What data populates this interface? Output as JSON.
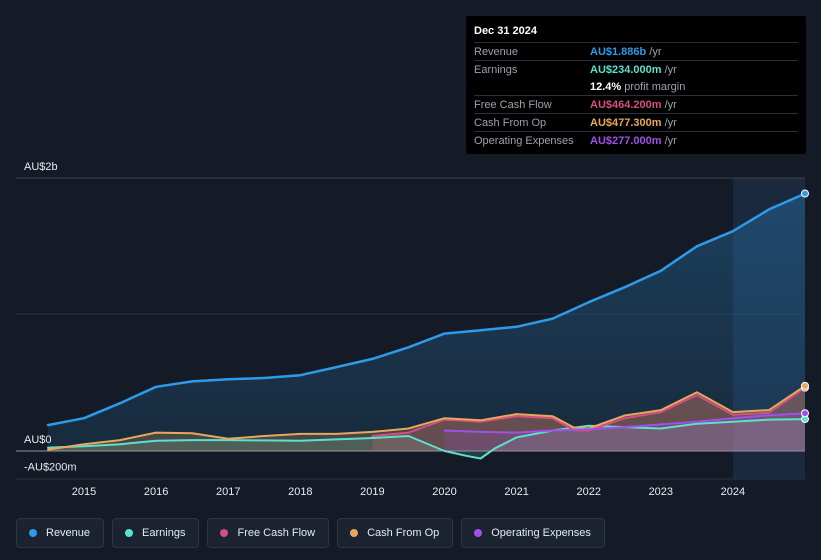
{
  "tooltip": {
    "date": "Dec 31 2024",
    "rows": {
      "revenue": {
        "label": "Revenue",
        "value": "AU$1.886b",
        "unit": "/yr"
      },
      "earnings": {
        "label": "Earnings",
        "value": "AU$234.000m",
        "unit": "/yr"
      },
      "margin": {
        "value": "12.4%",
        "text": "profit margin"
      },
      "fcf": {
        "label": "Free Cash Flow",
        "value": "AU$464.200m",
        "unit": "/yr"
      },
      "cfo": {
        "label": "Cash From Op",
        "value": "AU$477.300m",
        "unit": "/yr"
      },
      "opex": {
        "label": "Operating Expenses",
        "value": "AU$277.000m",
        "unit": "/yr"
      }
    }
  },
  "legend": [
    "Revenue",
    "Earnings",
    "Free Cash Flow",
    "Cash From Op",
    "Operating Expenses"
  ],
  "colors": {
    "revenue": "#2d9be8",
    "earnings": "#5ee0cf",
    "fcf": "#d4507e",
    "cfo": "#e8a75d",
    "opex": "#a052e8",
    "background": "#151b26",
    "tooltip_bg": "#000000"
  },
  "chart_data": {
    "type": "line",
    "title": "",
    "xlabel": "",
    "ylabel": "",
    "y_axis_labels": [
      "AU$2b",
      "AU$0",
      "-AU$200m"
    ],
    "ylim": [
      -200,
      2000
    ],
    "xlim": [
      2014.5,
      2025.0
    ],
    "x_ticks": [
      2015,
      2016,
      2017,
      2018,
      2019,
      2020,
      2021,
      2022,
      2023,
      2024
    ],
    "units": "AU$ millions per year",
    "series": [
      {
        "name": "Revenue",
        "key": "revenue",
        "x": [
          2014.5,
          2015.0,
          2015.5,
          2016.0,
          2016.5,
          2017.0,
          2017.5,
          2018.0,
          2018.5,
          2019.0,
          2019.5,
          2020.0,
          2020.5,
          2021.0,
          2021.5,
          2022.0,
          2022.5,
          2023.0,
          2023.5,
          2024.0,
          2024.5,
          2025.0
        ],
        "values": [
          190,
          240,
          350,
          470,
          510,
          525,
          535,
          555,
          615,
          675,
          760,
          860,
          885,
          910,
          970,
          1090,
          1200,
          1320,
          1500,
          1610,
          1770,
          1886
        ]
      },
      {
        "name": "Earnings",
        "key": "earnings",
        "x": [
          2014.5,
          2015.0,
          2015.5,
          2016.0,
          2016.5,
          2017.0,
          2017.5,
          2018.0,
          2018.5,
          2019.0,
          2019.5,
          2020.0,
          2020.3,
          2020.5,
          2020.7,
          2021.0,
          2021.5,
          2022.0,
          2022.5,
          2023.0,
          2023.5,
          2024.0,
          2024.5,
          2025.0
        ],
        "values": [
          25,
          35,
          50,
          75,
          80,
          80,
          78,
          75,
          85,
          95,
          110,
          0,
          -35,
          -55,
          20,
          100,
          150,
          185,
          175,
          165,
          200,
          215,
          230,
          234
        ]
      },
      {
        "name": "Free Cash Flow",
        "key": "fcf",
        "x": [
          2019.0,
          2019.5,
          2020.0,
          2020.5,
          2021.0,
          2021.5,
          2021.8,
          2022.0,
          2022.5,
          2023.0,
          2023.5,
          2024.0,
          2024.5,
          2025.0
        ],
        "values": [
          110,
          135,
          230,
          215,
          255,
          240,
          150,
          150,
          240,
          285,
          410,
          265,
          280,
          464
        ]
      },
      {
        "name": "Cash From Op",
        "key": "cfo",
        "x": [
          2014.5,
          2015.0,
          2015.5,
          2016.0,
          2016.5,
          2017.0,
          2017.5,
          2018.0,
          2018.5,
          2019.0,
          2019.5,
          2020.0,
          2020.5,
          2021.0,
          2021.5,
          2021.8,
          2022.0,
          2022.5,
          2023.0,
          2023.5,
          2024.0,
          2024.5,
          2025.0
        ],
        "values": [
          10,
          50,
          80,
          135,
          130,
          90,
          110,
          125,
          125,
          140,
          165,
          240,
          225,
          270,
          255,
          170,
          165,
          260,
          300,
          430,
          285,
          300,
          477
        ]
      },
      {
        "name": "Operating Expenses",
        "key": "opex",
        "x": [
          2020.0,
          2020.5,
          2021.0,
          2021.5,
          2022.0,
          2022.5,
          2023.0,
          2023.5,
          2024.0,
          2024.5,
          2025.0
        ],
        "values": [
          150,
          140,
          135,
          150,
          160,
          175,
          195,
          215,
          240,
          262,
          277
        ]
      }
    ]
  }
}
